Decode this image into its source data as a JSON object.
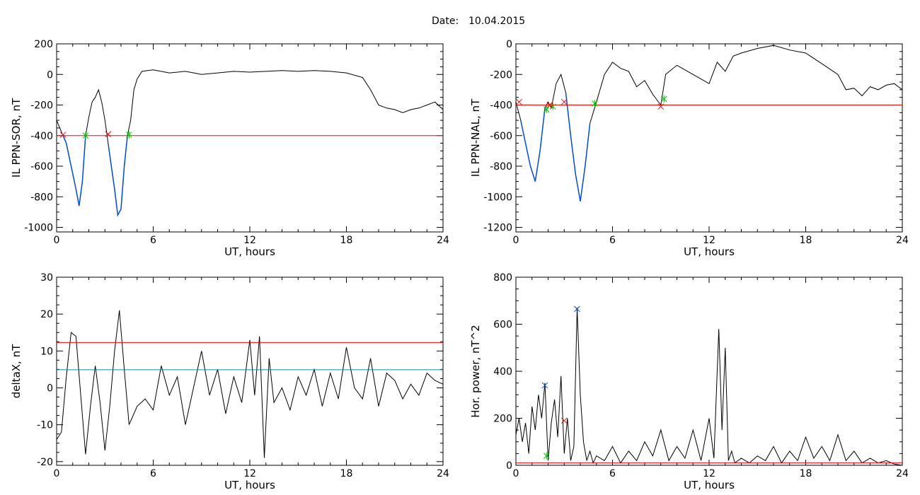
{
  "header": {
    "date_label": "Date:",
    "date_value": "10.04.2015"
  },
  "colors": {
    "line": "#000000",
    "threshold": "#ff0000",
    "highlight": "#0050d0",
    "cyan_line": "#0090b0",
    "mark_red": "#c00000",
    "mark_green": "#00c000",
    "mark_blue": "#2060d0"
  },
  "chart_data": [
    {
      "id": "tl",
      "type": "line",
      "xlabel": "UT, hours",
      "ylabel": "IL PPN-SOR, nT",
      "xlim": [
        0,
        24
      ],
      "ylim": [
        -1030,
        200
      ],
      "xticks": [
        0,
        6,
        12,
        18,
        24
      ],
      "yticks": [
        200,
        0,
        -200,
        -400,
        -600,
        -800,
        -1000
      ],
      "hlines": [
        {
          "y": -400,
          "color": "red"
        }
      ],
      "series": [
        {
          "color": "black",
          "x": [
            0,
            0.2,
            0.4,
            0.6,
            0.8,
            1.0,
            1.2,
            1.4,
            1.6,
            1.8,
            2.0,
            2.2,
            2.4,
            2.6,
            2.8,
            3.0,
            3.2,
            3.4,
            3.6,
            3.8,
            4.0,
            4.2,
            4.4,
            4.6,
            4.8,
            5.0,
            5.3,
            6,
            7,
            8,
            9,
            10,
            11,
            12,
            13,
            14,
            15,
            16,
            17,
            18,
            19,
            19.5,
            20,
            20.5,
            21,
            21.5,
            22,
            22.5,
            23,
            23.5,
            24
          ],
          "y": [
            -300,
            -350,
            -400,
            -450,
            -550,
            -650,
            -750,
            -860,
            -700,
            -400,
            -280,
            -180,
            -150,
            -100,
            -180,
            -300,
            -450,
            -600,
            -750,
            -920,
            -880,
            -600,
            -400,
            -300,
            -100,
            -30,
            20,
            30,
            10,
            20,
            0,
            10,
            20,
            15,
            20,
            25,
            20,
            25,
            20,
            10,
            -20,
            -100,
            -200,
            -220,
            -230,
            -250,
            -230,
            -220,
            -200,
            -180,
            -230
          ]
        },
        {
          "color": "blue",
          "x": [
            0.4,
            0.6,
            0.8,
            1.0,
            1.2,
            1.4,
            1.6,
            1.8
          ],
          "y": [
            -400,
            -450,
            -550,
            -650,
            -750,
            -860,
            -700,
            -400
          ]
        },
        {
          "color": "blue",
          "x": [
            3.2,
            3.4,
            3.6,
            3.8,
            4.0,
            4.2,
            4.4
          ],
          "y": [
            -450,
            -600,
            -750,
            -920,
            -880,
            -600,
            -400
          ]
        }
      ],
      "markers": [
        {
          "x": 0.4,
          "y": -395,
          "color": "red"
        },
        {
          "x": 1.8,
          "y": -400,
          "color": "green"
        },
        {
          "x": 3.2,
          "y": -390,
          "color": "red"
        },
        {
          "x": 4.5,
          "y": -395,
          "color": "green"
        }
      ]
    },
    {
      "id": "tr",
      "type": "line",
      "xlabel": "UT, hours",
      "ylabel": "IL PPN-NAL, nT",
      "xlim": [
        0,
        24
      ],
      "ylim": [
        -1230,
        0
      ],
      "xticks": [
        0,
        6,
        12,
        18,
        24
      ],
      "yticks": [
        0,
        -200,
        -400,
        -600,
        -800,
        -1000,
        -1200
      ],
      "hlines": [
        {
          "y": -400,
          "color": "red"
        }
      ],
      "series": [
        {
          "color": "black",
          "x": [
            0,
            0.3,
            0.6,
            0.9,
            1.2,
            1.5,
            1.8,
            2.0,
            2.2,
            2.5,
            2.8,
            3.1,
            3.4,
            3.7,
            4.0,
            4.3,
            4.6,
            5.0,
            5.5,
            6,
            6.5,
            7,
            7.5,
            8,
            8.5,
            9,
            9.3,
            10,
            11,
            12,
            12.5,
            13,
            13.5,
            14,
            15,
            16,
            17,
            18,
            19,
            20,
            20.5,
            21,
            21.5,
            22,
            22.5,
            23,
            23.5,
            24
          ],
          "y": [
            -380,
            -500,
            -650,
            -800,
            -900,
            -700,
            -420,
            -380,
            -420,
            -260,
            -200,
            -320,
            -600,
            -850,
            -1030,
            -800,
            -520,
            -380,
            -200,
            -120,
            -160,
            -180,
            -280,
            -240,
            -330,
            -400,
            -200,
            -140,
            -200,
            -260,
            -120,
            -180,
            -80,
            -60,
            -30,
            -10,
            -40,
            -60,
            -130,
            -200,
            -300,
            -290,
            -340,
            -280,
            -300,
            -270,
            -260,
            -300
          ]
        },
        {
          "color": "blue",
          "x": [
            0.3,
            0.6,
            0.9,
            1.2,
            1.5,
            1.8
          ],
          "y": [
            -500,
            -650,
            -800,
            -900,
            -700,
            -420
          ]
        },
        {
          "color": "blue",
          "x": [
            3.1,
            3.4,
            3.7,
            4.0,
            4.3,
            4.6
          ],
          "y": [
            -320,
            -600,
            -850,
            -1030,
            -800,
            -520
          ]
        }
      ],
      "markers": [
        {
          "x": 0.2,
          "y": -380,
          "color": "red"
        },
        {
          "x": 1.9,
          "y": -430,
          "color": "green"
        },
        {
          "x": 2.1,
          "y": -400,
          "color": "red"
        },
        {
          "x": 2.3,
          "y": -410,
          "color": "green"
        },
        {
          "x": 3.0,
          "y": -380,
          "color": "red"
        },
        {
          "x": 4.9,
          "y": -390,
          "color": "green"
        },
        {
          "x": 9.0,
          "y": -410,
          "color": "red"
        },
        {
          "x": 9.2,
          "y": -360,
          "color": "green"
        }
      ]
    },
    {
      "id": "bl",
      "type": "line",
      "xlabel": "UT, hours",
      "ylabel": "deltaX, nT",
      "xlim": [
        0,
        24
      ],
      "ylim": [
        -21,
        30
      ],
      "xticks": [
        0,
        6,
        12,
        18,
        24
      ],
      "yticks": [
        30,
        20,
        10,
        0,
        -10,
        -20
      ],
      "hlines": [
        {
          "y": 12.3,
          "color": "red"
        },
        {
          "y": 4.9,
          "color": "cyan"
        }
      ],
      "series": [
        {
          "color": "black",
          "x": [
            0,
            0.3,
            0.6,
            0.9,
            1.2,
            1.5,
            1.8,
            2.1,
            2.4,
            2.7,
            3.0,
            3.3,
            3.6,
            3.9,
            4.2,
            4.5,
            5,
            5.5,
            6,
            6.5,
            7,
            7.5,
            8,
            8.5,
            9,
            9.5,
            10,
            10.5,
            11,
            11.5,
            12,
            12.3,
            12.6,
            12.9,
            13.2,
            13.5,
            14,
            14.5,
            15,
            15.5,
            16,
            16.5,
            17,
            17.5,
            18,
            18.5,
            19,
            19.5,
            20,
            20.5,
            21,
            21.5,
            22,
            22.5,
            23,
            23.5,
            24
          ],
          "y": [
            -14,
            -12,
            3,
            15,
            14,
            -2,
            -18,
            -5,
            6,
            -4,
            -17,
            -5,
            10,
            21,
            5,
            -10,
            -5,
            -3,
            -6,
            6,
            -2,
            3,
            -10,
            0,
            10,
            -2,
            5,
            -7,
            3,
            -4,
            13,
            -2,
            14,
            -19,
            8,
            -4,
            0,
            -6,
            3,
            -2,
            5,
            -5,
            4,
            -3,
            11,
            0,
            -3,
            8,
            -5,
            4,
            2,
            -3,
            1,
            -2,
            4,
            2,
            1
          ]
        }
      ],
      "markers": []
    },
    {
      "id": "br",
      "type": "line",
      "xlabel": "UT, hours",
      "ylabel": "Hor. power, nT^2",
      "xlim": [
        0,
        24
      ],
      "ylim": [
        0,
        800
      ],
      "xticks": [
        0,
        6,
        12,
        18,
        24
      ],
      "yticks": [
        800,
        600,
        400,
        200,
        0
      ],
      "yticks_shown": [
        800,
        600,
        400,
        200,
        0
      ],
      "hlines": [
        {
          "y": 10,
          "color": "red"
        }
      ],
      "series": [
        {
          "color": "black",
          "x": [
            0,
            0.2,
            0.4,
            0.6,
            0.8,
            1.0,
            1.2,
            1.4,
            1.6,
            1.8,
            2.0,
            2.2,
            2.4,
            2.6,
            2.8,
            3.0,
            3.2,
            3.4,
            3.6,
            3.8,
            4.0,
            4.2,
            4.4,
            4.6,
            4.8,
            5,
            5.5,
            6,
            6.5,
            7,
            7.5,
            8,
            8.5,
            9,
            9.5,
            10,
            10.5,
            11,
            11.5,
            12,
            12.3,
            12.6,
            12.8,
            13.0,
            13.2,
            13.4,
            13.6,
            14,
            14.5,
            15,
            15.5,
            16,
            16.5,
            17,
            17.5,
            18,
            18.5,
            19,
            19.5,
            20,
            20.5,
            21,
            21.5,
            22,
            22.5,
            23,
            23.5,
            24
          ],
          "y": [
            130,
            200,
            100,
            180,
            50,
            250,
            150,
            300,
            200,
            350,
            20,
            180,
            280,
            120,
            380,
            50,
            200,
            20,
            80,
            670,
            300,
            100,
            20,
            60,
            10,
            40,
            20,
            80,
            10,
            60,
            20,
            100,
            40,
            150,
            20,
            80,
            30,
            150,
            20,
            200,
            30,
            580,
            150,
            500,
            20,
            60,
            10,
            30,
            10,
            40,
            20,
            80,
            10,
            60,
            20,
            120,
            30,
            80,
            20,
            130,
            20,
            60,
            10,
            30,
            10,
            20,
            5,
            0
          ]
        }
      ],
      "markers": [
        {
          "x": 1.8,
          "y": 340,
          "color": "blue"
        },
        {
          "x": 1.9,
          "y": 40,
          "color": "green"
        },
        {
          "x": 3.0,
          "y": 190,
          "color": "red"
        },
        {
          "x": 3.8,
          "y": 665,
          "color": "blue"
        }
      ]
    }
  ]
}
